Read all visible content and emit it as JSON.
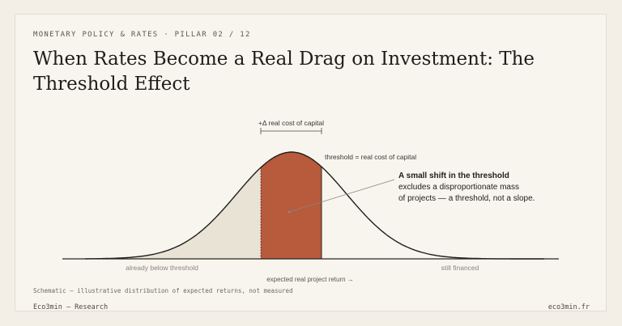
{
  "header": {
    "eyebrow": "MONETARY POLICY & RATES · PILLAR 02 / 12",
    "title": "When Rates Become a Real Drag on Investment: The Threshold Effect"
  },
  "diagram": {
    "delta_label": "+Δ real cost of capital",
    "threshold_label": "threshold = real cost of capital",
    "callout_bold": "A small shift in the threshold",
    "callout_line1": "excludes a disproportionate mass",
    "callout_line2": "of projects — a threshold, not a slope.",
    "region_below": "already below threshold",
    "region_financed": "still financed",
    "x_axis_label": "expected real project return →",
    "colors": {
      "curve": "#1f1d1a",
      "excluded_fill": "#b85a3c",
      "below_fill": "#e9e3d6",
      "axis": "#2a2724"
    }
  },
  "footer": {
    "note": "Schematic — illustrative distribution of expected returns, not measured",
    "brand": "Eco3min — Research",
    "site": "eco3min.fr"
  }
}
